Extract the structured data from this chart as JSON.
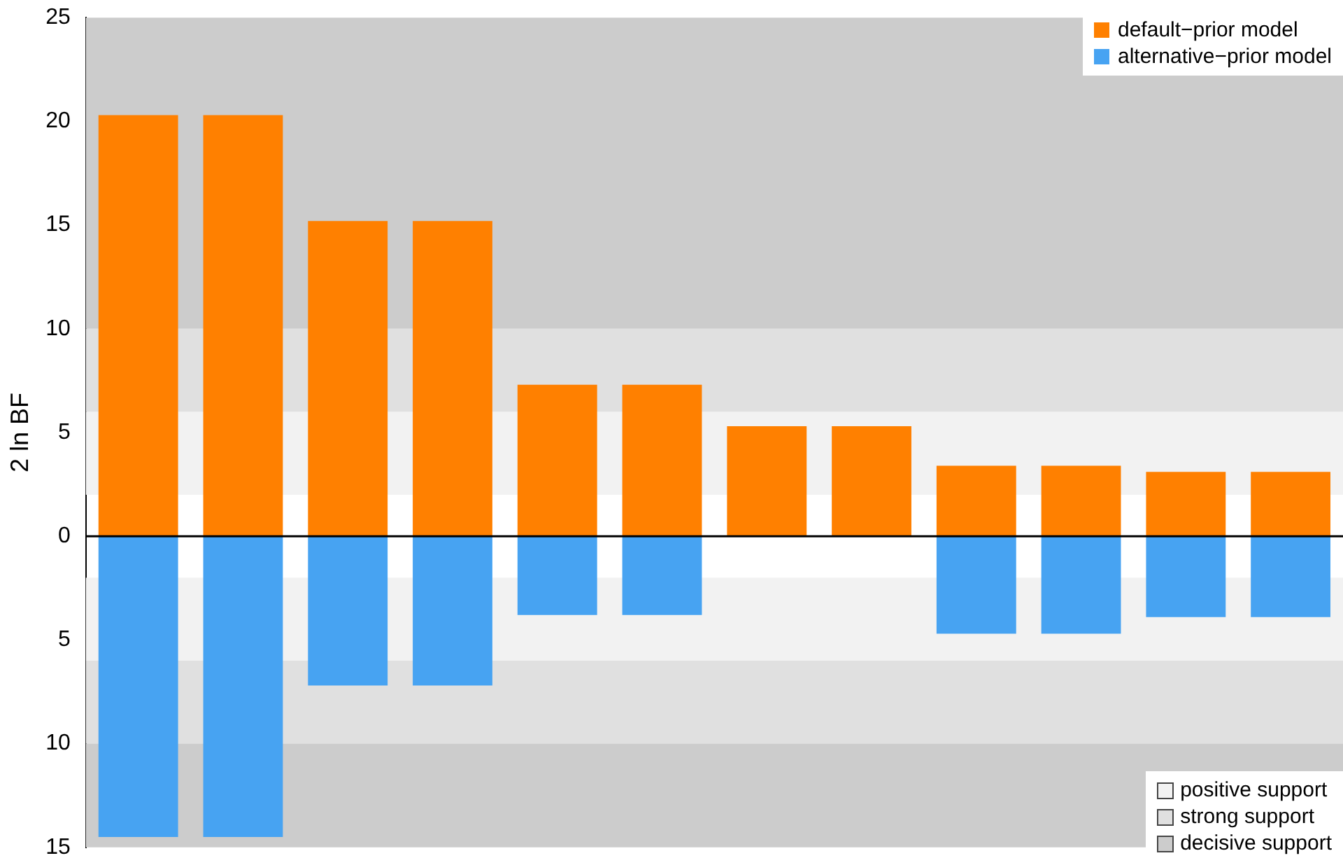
{
  "chart_data": {
    "type": "bar",
    "ylabel": "2 ln BF",
    "stacked": true,
    "categories": [
      null,
      null,
      null,
      null,
      null,
      null,
      null,
      null,
      null,
      null,
      null,
      null
    ],
    "series": [
      {
        "name": "default−prior model",
        "color": "#ff8000",
        "values": [
          20.3,
          20.3,
          15.2,
          15.2,
          7.3,
          7.3,
          5.3,
          5.3,
          3.4,
          3.4,
          3.1,
          3.1
        ]
      },
      {
        "name": "alternative−prior model",
        "color": "#47a3f2",
        "values": [
          -14.5,
          -14.5,
          -7.2,
          -7.2,
          -3.8,
          -3.8,
          null,
          null,
          -4.7,
          -4.7,
          -3.9,
          -3.9
        ]
      }
    ],
    "ylim": [
      -15,
      25
    ],
    "yticks": [
      {
        "value": -15,
        "label": "15"
      },
      {
        "value": -10,
        "label": "10"
      },
      {
        "value": -5,
        "label": "5"
      },
      0,
      5,
      10,
      15,
      20,
      25
    ],
    "bands": [
      {
        "axis": "y",
        "from": 2,
        "to": 6,
        "label": "positive support",
        "color": "#f2f2f2"
      },
      {
        "axis": "y",
        "from": 6,
        "to": 10,
        "label": "strong support",
        "color": "#e0e0e0"
      },
      {
        "axis": "y",
        "from": 10,
        "to": 25,
        "label": "decisive support",
        "color": "#cccccc"
      },
      {
        "axis": "y",
        "from": -6,
        "to": -2,
        "color": "#f2f2f2"
      },
      {
        "axis": "y",
        "from": -10,
        "to": -6,
        "color": "#e0e0e0"
      },
      {
        "axis": "y",
        "from": -15,
        "to": -10,
        "color": "#cccccc"
      }
    ],
    "ref_lines": [
      {
        "axis": "y",
        "value": 0,
        "color": "#000000"
      }
    ],
    "legend": "right",
    "grid": false
  }
}
